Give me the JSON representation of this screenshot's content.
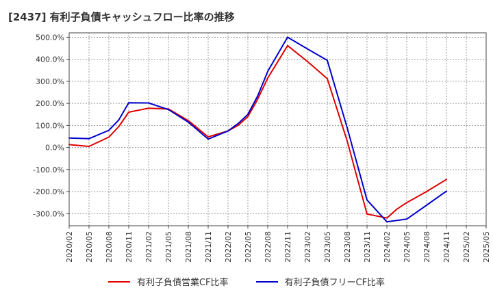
{
  "chart_data": {
    "type": "line",
    "title": "[2437]  有利子負債キャッシュフロー比率の推移",
    "x_labels": [
      "2020/02",
      "2020/05",
      "2020/08",
      "2020/11",
      "2021/02",
      "2021/05",
      "2021/08",
      "2021/11",
      "2022/02",
      "2022/05",
      "2022/08",
      "2022/11",
      "2023/02",
      "2023/05",
      "2023/08",
      "2023/11",
      "2024/02",
      "2024/05",
      "2024/08",
      "2024/11",
      "2025/02",
      "2025/05"
    ],
    "y_ticks": [
      "500.0%",
      "400.0%",
      "300.0%",
      "200.0%",
      "100.0%",
      "0.0%",
      "-100.0%",
      "-200.0%",
      "-300.0%"
    ],
    "y_tick_values": [
      500,
      400,
      300,
      200,
      100,
      0,
      -100,
      -200,
      -300
    ],
    "ylim": [
      -355,
      520
    ],
    "grid": true,
    "legend_position": "bottom",
    "series": [
      {
        "name": "有利子負債営業CF比率",
        "color": "#e00000",
        "x": [
          0,
          1,
          2,
          2.5,
          3,
          4,
          5,
          6,
          7,
          8,
          8.5,
          9,
          9.5,
          10,
          11,
          12,
          13,
          14,
          15,
          16,
          16.5,
          17,
          18,
          19
        ],
        "values": [
          13,
          5,
          47,
          95,
          160,
          178,
          175,
          122,
          48,
          75,
          100,
          140,
          220,
          315,
          462,
          390,
          312,
          30,
          -302,
          -320,
          -280,
          -250,
          -200,
          -145
        ]
      },
      {
        "name": "有利子負債フリーCF比率",
        "color": "#0000cc",
        "x": [
          0,
          1,
          2,
          2.5,
          3,
          4,
          5,
          6,
          7,
          8,
          8.5,
          9,
          9.5,
          10,
          11,
          12,
          13,
          14,
          15,
          16,
          17,
          18,
          19
        ],
        "values": [
          43,
          40,
          78,
          125,
          203,
          202,
          172,
          115,
          38,
          75,
          108,
          150,
          235,
          345,
          500,
          447,
          395,
          90,
          -238,
          -337,
          -325,
          -262,
          -198
        ]
      }
    ]
  }
}
